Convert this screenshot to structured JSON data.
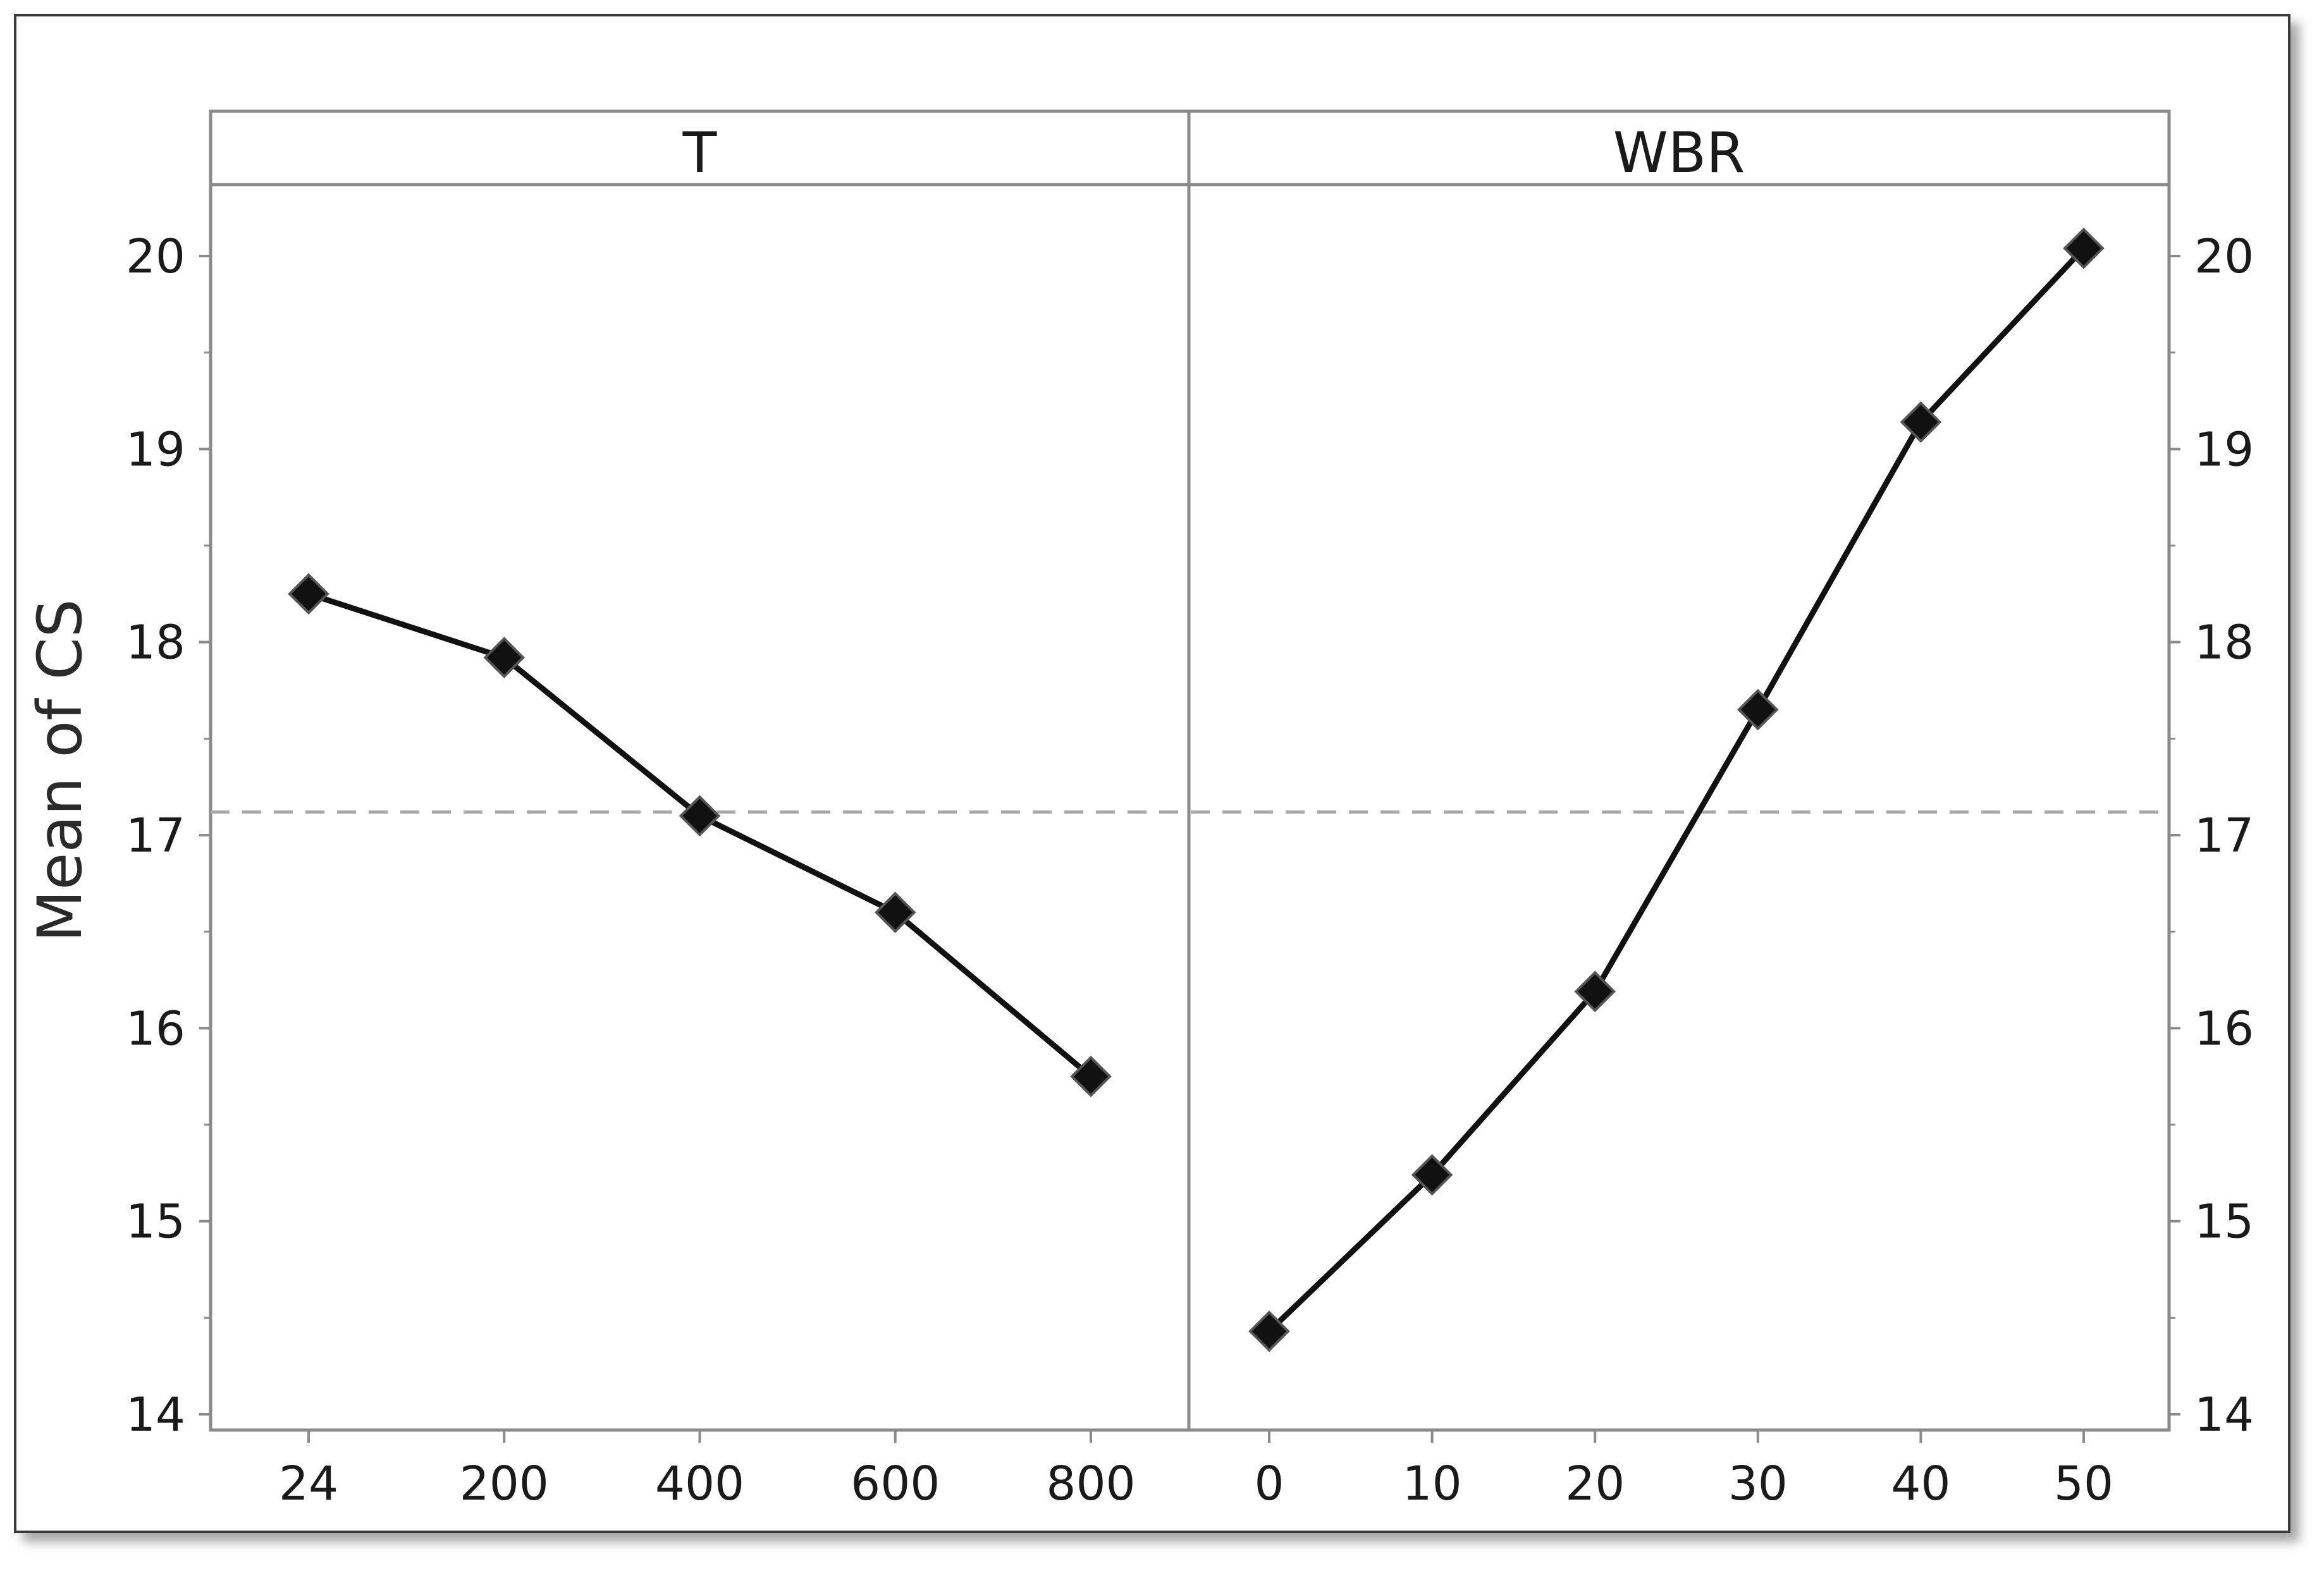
{
  "chart_data": {
    "type": "line",
    "ylabel": "Mean of CS",
    "ylim": [
      14,
      20
    ],
    "yticks": [
      14,
      15,
      16,
      17,
      18,
      19,
      20
    ],
    "reference_line": 17.12,
    "grid": false,
    "panels": [
      {
        "title": "T",
        "categories": [
          "24",
          "200",
          "400",
          "600",
          "800"
        ],
        "values": [
          18.25,
          17.92,
          17.1,
          16.6,
          15.75
        ]
      },
      {
        "title": "WBR",
        "categories": [
          "0",
          "10",
          "20",
          "30",
          "40",
          "50"
        ],
        "values": [
          14.43,
          15.24,
          16.19,
          17.65,
          19.14,
          20.04
        ]
      }
    ]
  }
}
